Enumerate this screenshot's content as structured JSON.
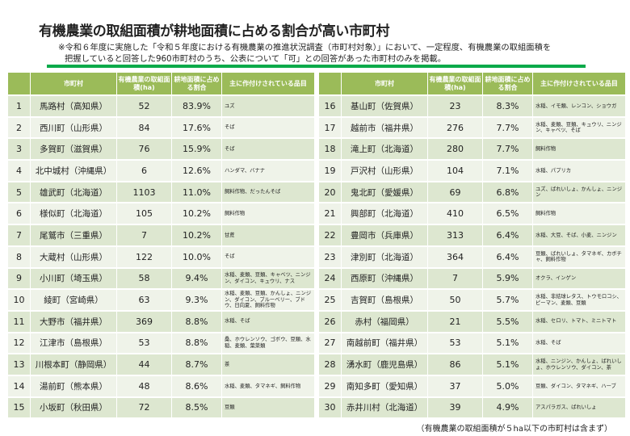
{
  "title": "有機農業の取組面積が耕地面積に占める割合が高い市町村",
  "note_line1": "※令和６年度に実施した「令和５年度における有機農業の推進状況調査（市町村対象）」において、一定程度、有機農業の取組面積を",
  "note_line2": "把握していると回答した960市町村のうち、公表について「可」との回答があった市町村のみを掲載。",
  "left_headers": [
    "",
    "市町村",
    "有機農業の取組面積(ha)",
    "耕地面積に占める割合",
    "主に作付けされている品目"
  ],
  "right_headers": [
    "",
    "市町村",
    "有機農業の取組面積(ha)",
    "耕地面積に占める割合",
    "主に作付けされている品目"
  ],
  "rows": [
    [
      "1",
      "馬路村（高知県）",
      "52",
      "83.9%",
      "ユズ"
    ],
    [
      "2",
      "西川町（山形県）",
      "84",
      "17.6%",
      "そば"
    ],
    [
      "3",
      "多賀町（滋賀県）",
      "76",
      "15.9%",
      "そば"
    ],
    [
      "4",
      "北中城村（沖縄県）",
      "6",
      "12.6%",
      "ハンダマ、バナナ"
    ],
    [
      "5",
      "雄武町（北海道）",
      "1103",
      "11.0%",
      "飼料作物、だったんそば"
    ],
    [
      "6",
      "様似町（北海道）",
      "105",
      "10.2%",
      "飼料作物"
    ],
    [
      "7",
      "尾鷲市（三重県）",
      "7",
      "10.2%",
      "甘蔗"
    ],
    [
      "8",
      "大蔵村（山形県）",
      "122",
      "10.0%",
      "そば"
    ],
    [
      "9",
      "小川町（埼玉県）",
      "58",
      "9.4%",
      "水稲、麦類、豆類、キャベツ、ニンジン、ダイコン、キュウリ、ナス"
    ],
    [
      "10",
      "綾町（宮崎県）",
      "63",
      "9.3%",
      "水稲、麦類、豆類、かんしょ、ニンジン、ダイコン、ブルーベリー、ブドウ、日向夏、飼料作物"
    ],
    [
      "11",
      "大野市（福井県）",
      "369",
      "8.8%",
      "水稲、そば"
    ],
    [
      "12",
      "江津市（島根県）",
      "53",
      "8.8%",
      "桑、ホウレンソウ、ゴボウ、豆類、水稲、麦類、葉菜類"
    ],
    [
      "13",
      "川根本町（静岡県）",
      "44",
      "8.7%",
      "茶"
    ],
    [
      "14",
      "湯前町（熊本県）",
      "48",
      "8.6%",
      "水稲、麦類、タマネギ、飼料作物"
    ],
    [
      "15",
      "小坂町（秋田県）",
      "72",
      "8.5%",
      "豆類"
    ],
    [
      "16",
      "基山町（佐賀県）",
      "23",
      "8.3%",
      "水稲、イモ類、レンコン、ショウガ"
    ],
    [
      "17",
      "越前市（福井県）",
      "276",
      "7.7%",
      "水稲、麦類、豆類、キュウリ、ニンジン、キャベツ、そば"
    ],
    [
      "18",
      "滝上町（北海道）",
      "280",
      "7.7%",
      "飼料作物"
    ],
    [
      "19",
      "戸沢村（山形県）",
      "104",
      "7.1%",
      "水稲、パプリカ"
    ],
    [
      "20",
      "鬼北町（愛媛県）",
      "69",
      "6.8%",
      "ユズ、ばれいしょ、かんしょ、ニンジン"
    ],
    [
      "21",
      "興部町（北海道）",
      "410",
      "6.5%",
      "飼料作物"
    ],
    [
      "22",
      "豊岡市（兵庫県）",
      "313",
      "6.4%",
      "水稲、大豆、そば、小麦、ニンジン"
    ],
    [
      "23",
      "津別町（北海道）",
      "364",
      "6.4%",
      "豆類、ばれいしょ、タマネギ、カボチャ、飼料作物"
    ],
    [
      "24",
      "西原町（沖縄県）",
      "7",
      "5.9%",
      "オクラ、インゲン"
    ],
    [
      "25",
      "吉賀町（島根県）",
      "50",
      "5.7%",
      "水稲、非結球レタス、トウモロコシ、ピーマン、麦類、豆類"
    ],
    [
      "26",
      "赤村（福岡県）",
      "21",
      "5.5%",
      "水稲、セロリ、トマト、ミニトマト"
    ],
    [
      "27",
      "南越前町（福井県）",
      "53",
      "5.1%",
      "水稲、そば"
    ],
    [
      "28",
      "湧水町（鹿児島県）",
      "86",
      "5.1%",
      "水稲、ニンジン、かんしょ、ばれいしょ、ホウレンソウ、ダイコン、茶"
    ],
    [
      "29",
      "南知多町（愛知県）",
      "37",
      "5.0%",
      "豆類、ダイコン、タマネギ、ハーブ"
    ],
    [
      "30",
      "赤井川村（北海道）",
      "39",
      "4.9%",
      "アスパラガス、ばれいしょ"
    ]
  ],
  "footnote": "（有機農業の取組面積が５ha以下の市町村は含まず）",
  "colors": {
    "header": "#9bbb59",
    "row_odd": "#dde7d0",
    "row_even": "#eff3e9",
    "rule": "#0aaa4a"
  }
}
